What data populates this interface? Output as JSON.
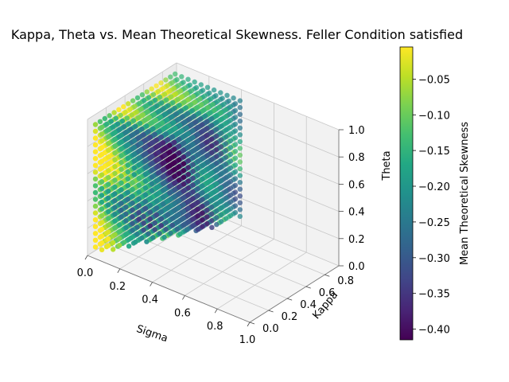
{
  "chart_data": {
    "type": "scatter3d",
    "title": "Kappa, Theta vs. Mean Theoretical Skewness. Feller Condition satisfied",
    "xlabel": "Sigma",
    "ylabel": "Kappa",
    "zlabel": "Theta",
    "colorbar_label": "Mean Theoretical Skewness",
    "colormap": "viridis",
    "xlim": [
      0.0,
      1.0
    ],
    "ylim": [
      0.0,
      0.95
    ],
    "zlim": [
      0.0,
      1.0
    ],
    "clim": [
      -0.415,
      -0.005
    ],
    "x_ticks": [
      "0.0",
      "0.2",
      "0.4",
      "0.6",
      "0.8",
      "1.0"
    ],
    "y_ticks": [
      "0.0",
      "0.2",
      "0.4",
      "0.6",
      "0.8"
    ],
    "z_ticks": [
      "0.0",
      "0.2",
      "0.4",
      "0.6",
      "0.8",
      "1.0"
    ],
    "colorbar_ticks": [
      "−0.05",
      "−0.10",
      "−0.15",
      "−0.20",
      "−0.25",
      "−0.30",
      "−0.35",
      "−0.40"
    ],
    "colorbar_tick_values": [
      -0.05,
      -0.1,
      -0.15,
      -0.2,
      -0.25,
      -0.3,
      -0.35,
      -0.4
    ],
    "grid": true,
    "point_grid": {
      "sigma_values": [
        0.02,
        0.06,
        0.1,
        0.14,
        0.18,
        0.22,
        0.26,
        0.3,
        0.34,
        0.38,
        0.42
      ],
      "kappa_values": [
        0.05,
        0.1,
        0.15,
        0.2,
        0.25,
        0.3,
        0.35,
        0.4,
        0.45,
        0.5,
        0.55,
        0.6,
        0.65,
        0.7,
        0.75,
        0.8,
        0.85,
        0.9
      ],
      "theta_values": [
        0.05,
        0.1,
        0.15,
        0.2,
        0.25,
        0.3,
        0.35,
        0.4,
        0.45,
        0.5,
        0.55,
        0.6,
        0.65,
        0.7,
        0.75,
        0.8,
        0.85,
        0.9,
        0.95
      ],
      "feller_condition": "2*kappa*theta >= sigma^2"
    }
  }
}
